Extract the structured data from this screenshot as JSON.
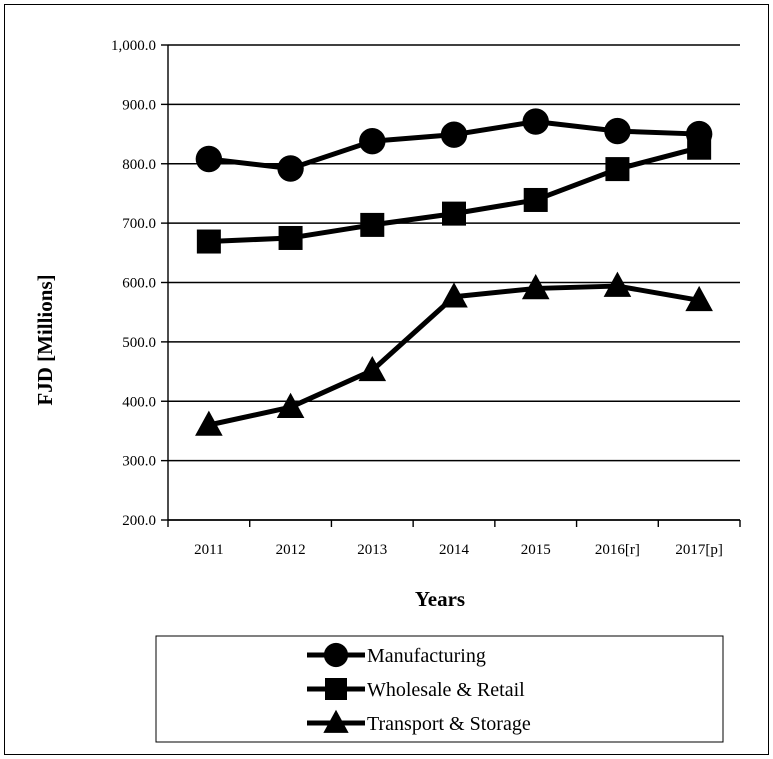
{
  "chart_data": {
    "type": "line",
    "title": "",
    "xlabel": "Years",
    "ylabel": "FJD [Millions]",
    "categories": [
      "2011",
      "2012",
      "2013",
      "2014",
      "2015",
      "2016[r]",
      "2017[p]"
    ],
    "ylim": [
      200,
      1000
    ],
    "yticks": [
      "200.0",
      "300.0",
      "400.0",
      "500.0",
      "600.0",
      "700.0",
      "800.0",
      "900.0",
      "1,000.0"
    ],
    "ytick_values": [
      200,
      300,
      400,
      500,
      600,
      700,
      800,
      900,
      1000
    ],
    "grid": "horizontal",
    "legend_position": "bottom",
    "series": [
      {
        "name": "Manufacturing",
        "marker": "circle",
        "values": [
          808,
          792,
          838,
          849,
          871,
          855,
          850
        ]
      },
      {
        "name": "Wholesale & Retail",
        "marker": "square",
        "values": [
          669,
          675,
          697,
          716,
          739,
          791,
          827
        ]
      },
      {
        "name": "Transport & Storage",
        "marker": "triangle",
        "values": [
          360,
          390,
          452,
          576,
          590,
          594,
          570
        ]
      }
    ]
  }
}
